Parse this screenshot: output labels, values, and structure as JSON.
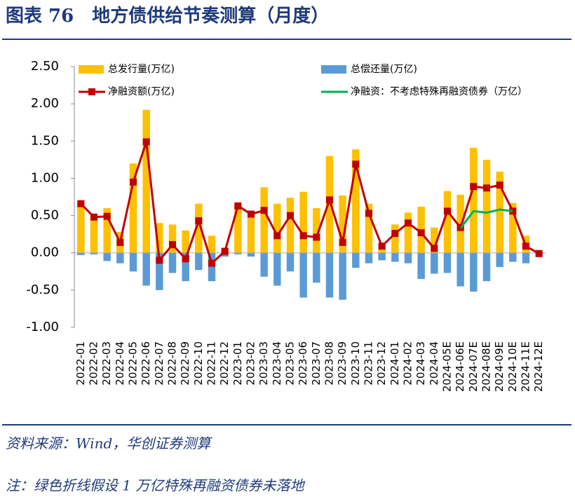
{
  "chart_data": {
    "type": "bar_line",
    "title": "图表 76　地方债供给节奏测算（月度）",
    "source": "资料来源：Wind，华创证券测算",
    "note": "注：绿色折线假设 1 万亿特殊再融资债券未落地",
    "categories": [
      "2022-01",
      "2022-02",
      "2022-03",
      "2022-04",
      "2022-05",
      "2022-06",
      "2022-07",
      "2022-08",
      "2022-09",
      "2022-10",
      "2022-11",
      "2022-12",
      "2023-01",
      "2023-02",
      "2023-03",
      "2023-04",
      "2023-05",
      "2023-06",
      "2023-07",
      "2023-08",
      "2023-09",
      "2023-10",
      "2023-11",
      "2023-12",
      "2024-01",
      "2024-02",
      "2024-03",
      "2024-04",
      "2024-05E",
      "2024-06E",
      "2024-07E",
      "2024-08E",
      "2024-09E",
      "2024-10E",
      "2024-11E",
      "2024-12E"
    ],
    "series": [
      {
        "name": "总发行量(万亿)",
        "kind": "bar",
        "color": "#ffc000",
        "values": [
          0.68,
          0.5,
          0.6,
          0.28,
          1.2,
          1.92,
          0.4,
          0.38,
          0.3,
          0.66,
          0.23,
          0.07,
          0.65,
          0.55,
          0.88,
          0.66,
          0.74,
          0.82,
          0.6,
          1.3,
          0.77,
          1.39,
          0.66,
          0.12,
          0.38,
          0.54,
          0.62,
          0.34,
          0.83,
          0.78,
          1.41,
          1.25,
          1.09,
          0.67,
          0.23,
          0.01
        ]
      },
      {
        "name": "总偿还量(万亿)",
        "kind": "bar",
        "color": "#5b9bd5",
        "values": [
          -0.03,
          -0.02,
          -0.11,
          -0.14,
          -0.25,
          -0.44,
          -0.5,
          -0.27,
          -0.38,
          -0.23,
          -0.38,
          -0.05,
          -0.02,
          -0.05,
          -0.32,
          -0.44,
          -0.25,
          -0.6,
          -0.4,
          -0.6,
          -0.63,
          -0.2,
          -0.14,
          -0.1,
          -0.12,
          -0.14,
          -0.35,
          -0.28,
          -0.27,
          -0.45,
          -0.52,
          -0.38,
          -0.19,
          -0.12,
          -0.14,
          -0.02
        ]
      },
      {
        "name": "净融资额(万亿)",
        "kind": "line",
        "marker": true,
        "color": "#c00000",
        "values": [
          0.66,
          0.48,
          0.49,
          0.14,
          0.95,
          1.49,
          -0.1,
          0.11,
          -0.08,
          0.43,
          -0.14,
          0.02,
          0.63,
          0.52,
          0.57,
          0.23,
          0.5,
          0.23,
          0.21,
          0.71,
          0.14,
          1.19,
          0.53,
          0.09,
          0.26,
          0.4,
          0.27,
          0.06,
          0.56,
          0.34,
          0.89,
          0.87,
          0.91,
          0.56,
          0.09,
          -0.01
        ]
      },
      {
        "name": "净融资：不考虑特殊再融资债券（万亿）",
        "kind": "line",
        "marker": false,
        "color": "#00b050",
        "values": [
          null,
          null,
          null,
          null,
          null,
          null,
          null,
          null,
          null,
          null,
          null,
          null,
          null,
          null,
          null,
          null,
          null,
          null,
          null,
          null,
          null,
          null,
          null,
          null,
          null,
          null,
          null,
          null,
          null,
          0.33,
          0.56,
          0.54,
          0.58,
          0.56,
          null,
          null
        ]
      }
    ],
    "ylim": [
      -1.0,
      2.5
    ],
    "yticks": [
      {
        "value": 2.5,
        "label": "2.50"
      },
      {
        "value": 2.0,
        "label": "2.00"
      },
      {
        "value": 1.5,
        "label": "1.50"
      },
      {
        "value": 1.0,
        "label": "1.00"
      },
      {
        "value": 0.5,
        "label": "0.50"
      },
      {
        "value": 0,
        "label": "0.00"
      },
      {
        "value": -0.5,
        "label": "-0.50"
      },
      {
        "value": -1.0,
        "label": "-1.00"
      }
    ]
  }
}
